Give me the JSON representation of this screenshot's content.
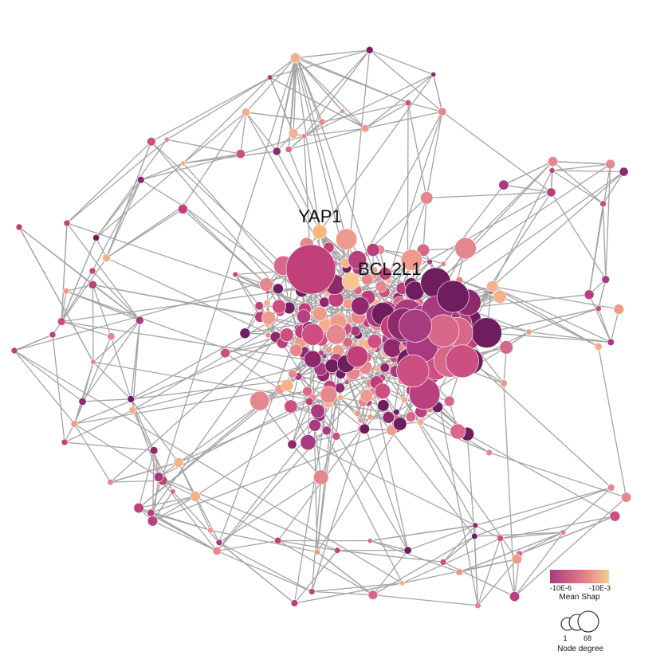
{
  "labeled_nodes": [
    {
      "id": "YAP1",
      "label": "YAP1",
      "color": "#f8b878"
    },
    {
      "id": "BCL2L1",
      "label": "BCL2L1",
      "color": "#f8c690"
    }
  ],
  "legend": {
    "color_scale": {
      "title": "Mean Shap",
      "min_label": "-10E-6",
      "max_label": "-10E-3",
      "min_color": "#a83a80",
      "mid_color": "#e07286",
      "max_color": "#f9c98c"
    },
    "size_scale": {
      "title": "Node degree",
      "min_label": "1",
      "max_label": "68"
    }
  },
  "colors": {
    "edge": "#a4a4a4",
    "palette": [
      "#6e1e5e",
      "#8e2a6c",
      "#a83a80",
      "#b8407c",
      "#c2407a",
      "#cd4f82",
      "#d8688a",
      "#e4878e",
      "#ee9a8c",
      "#f3b08a"
    ]
  }
}
